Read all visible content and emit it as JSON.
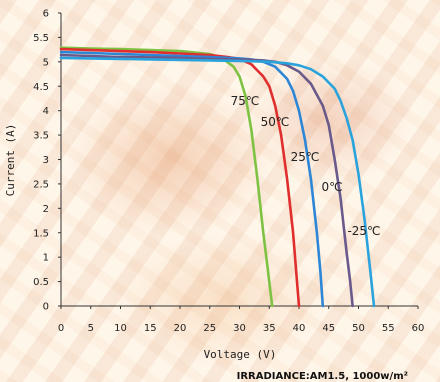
{
  "chart_data": {
    "type": "line",
    "title": "",
    "xlabel": "Voltage (V)",
    "ylabel": "Current (A)",
    "xlim": [
      0,
      60
    ],
    "ylim": [
      0,
      6
    ],
    "x_ticks": [
      0,
      5,
      10,
      15,
      20,
      25,
      30,
      35,
      40,
      45,
      50,
      55,
      60
    ],
    "y_ticks": [
      0,
      0.5,
      1,
      1.5,
      2,
      2.5,
      3,
      3.5,
      4,
      4.5,
      5,
      5.5,
      6
    ],
    "grid": false,
    "series": [
      {
        "name": "75℃",
        "color": "#7dc242",
        "x": [
          0,
          5,
          10,
          15,
          20,
          25,
          27,
          29,
          30,
          31,
          32,
          33,
          34,
          34.8,
          35.2,
          35.5
        ],
        "y": [
          5.29,
          5.27,
          5.26,
          5.24,
          5.22,
          5.16,
          5.08,
          4.9,
          4.7,
          4.3,
          3.6,
          2.6,
          1.5,
          0.7,
          0.3,
          0
        ]
      },
      {
        "name": "50℃",
        "color": "#e02d2d",
        "x": [
          0,
          5,
          10,
          15,
          20,
          25,
          28,
          30,
          32,
          34,
          35,
          36,
          37,
          38,
          39,
          39.6,
          40
        ],
        "y": [
          5.26,
          5.24,
          5.22,
          5.2,
          5.17,
          5.14,
          5.1,
          5.06,
          4.95,
          4.7,
          4.5,
          4.1,
          3.5,
          2.6,
          1.5,
          0.6,
          0
        ]
      },
      {
        "name": "25℃",
        "color": "#2e86d6",
        "x": [
          0,
          5,
          10,
          15,
          20,
          25,
          30,
          32,
          34,
          36,
          38,
          39,
          40,
          41,
          42,
          43,
          43.6,
          44
        ],
        "y": [
          5.2,
          5.18,
          5.16,
          5.14,
          5.12,
          5.1,
          5.07,
          5.05,
          5.0,
          4.9,
          4.65,
          4.4,
          4.0,
          3.4,
          2.6,
          1.5,
          0.7,
          0
        ]
      },
      {
        "name": "0℃",
        "color": "#6a5a8c",
        "x": [
          0,
          5,
          10,
          15,
          20,
          25,
          30,
          34,
          36,
          38,
          40,
          42,
          44,
          45,
          46,
          47,
          48,
          48.6,
          49
        ],
        "y": [
          5.14,
          5.12,
          5.1,
          5.09,
          5.08,
          5.06,
          5.05,
          5.03,
          5.0,
          4.93,
          4.8,
          4.55,
          4.1,
          3.7,
          3.0,
          2.2,
          1.1,
          0.5,
          0
        ]
      },
      {
        "name": "-25℃",
        "color": "#2aa3dd",
        "x": [
          0,
          5,
          10,
          15,
          20,
          25,
          30,
          35,
          38,
          40,
          42,
          44,
          46,
          47,
          48,
          49,
          50,
          51,
          52,
          52.6
        ],
        "y": [
          5.08,
          5.07,
          5.06,
          5.05,
          5.04,
          5.03,
          5.02,
          5.0,
          4.97,
          4.93,
          4.85,
          4.7,
          4.45,
          4.2,
          3.85,
          3.4,
          2.7,
          1.8,
          0.7,
          0
        ]
      }
    ],
    "annotation": "IRRADIANCE:AM1.5, 1000w/m²"
  }
}
